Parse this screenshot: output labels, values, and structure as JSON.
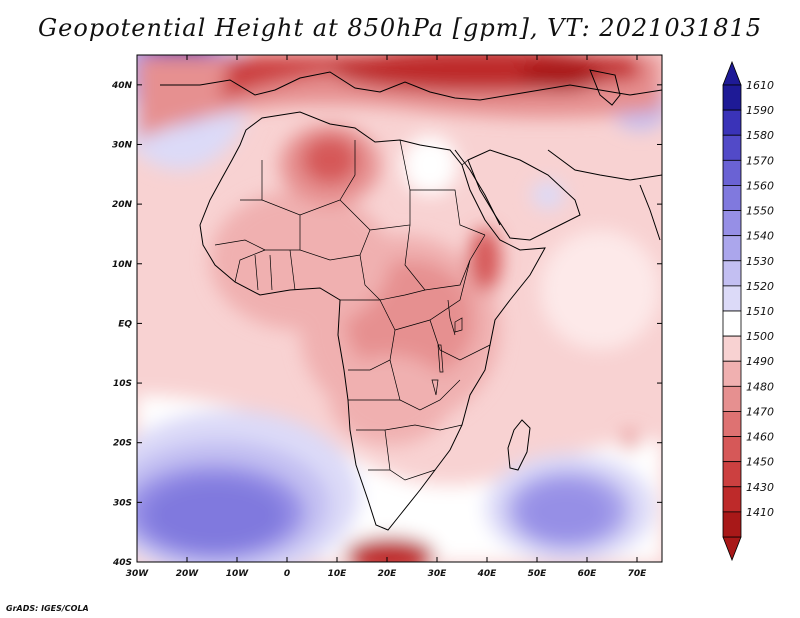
{
  "map": {
    "title": "Geopotential Height at 850hPa [gpm], VT: 2021031815",
    "variable": "Geopotential Height",
    "level": "850hPa",
    "units": "gpm",
    "valid_time": "2021031815",
    "lon_range": [
      -30,
      75
    ],
    "lat_range": [
      -40,
      45
    ],
    "lat_labels": [
      {
        "lat": 40,
        "text": "40N"
      },
      {
        "lat": 30,
        "text": "30N"
      },
      {
        "lat": 20,
        "text": "20N"
      },
      {
        "lat": 10,
        "text": "10N"
      },
      {
        "lat": 0,
        "text": "EQ"
      },
      {
        "lat": -10,
        "text": "10S"
      },
      {
        "lat": -20,
        "text": "20S"
      },
      {
        "lat": -30,
        "text": "30S"
      },
      {
        "lat": -40,
        "text": "40S"
      }
    ],
    "lon_labels": [
      {
        "lon": -30,
        "text": "30W"
      },
      {
        "lon": -20,
        "text": "20W"
      },
      {
        "lon": -10,
        "text": "10W"
      },
      {
        "lon": 0,
        "text": "0"
      },
      {
        "lon": 10,
        "text": "10E"
      },
      {
        "lon": 20,
        "text": "20E"
      },
      {
        "lon": 30,
        "text": "30E"
      },
      {
        "lon": 40,
        "text": "40E"
      },
      {
        "lon": 50,
        "text": "50E"
      },
      {
        "lon": 60,
        "text": "60E"
      },
      {
        "lon": 70,
        "text": "70E"
      }
    ]
  },
  "colorbar": {
    "levels": [
      {
        "value": "1610",
        "color": "#1e1a96"
      },
      {
        "value": "1590",
        "color": "#3a33b8"
      },
      {
        "value": "1580",
        "color": "#524ac8"
      },
      {
        "value": "1570",
        "color": "#6a62d4"
      },
      {
        "value": "1560",
        "color": "#8079de"
      },
      {
        "value": "1550",
        "color": "#968fe6"
      },
      {
        "value": "1540",
        "color": "#aba6ec"
      },
      {
        "value": "1530",
        "color": "#c3bff2"
      },
      {
        "value": "1520",
        "color": "#dcdaf8"
      },
      {
        "value": "1510",
        "color": "#ffffff"
      },
      {
        "value": "1500",
        "color": "#f8d2d2"
      },
      {
        "value": "1490",
        "color": "#f0b0b0"
      },
      {
        "value": "1480",
        "color": "#e69090"
      },
      {
        "value": "1470",
        "color": "#de7272"
      },
      {
        "value": "1460",
        "color": "#d65858"
      },
      {
        "value": "1450",
        "color": "#cc4040"
      },
      {
        "value": "1430",
        "color": "#be2a2a"
      },
      {
        "value": "1410",
        "color": "#a81818"
      }
    ],
    "top_color": "#1e1a96",
    "bottom_color": "#a81818"
  },
  "footer": {
    "credit": "GrADS: IGES/COLA"
  }
}
